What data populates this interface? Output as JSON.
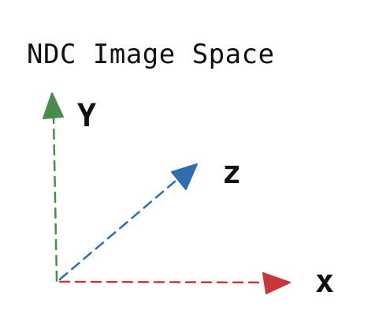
{
  "title": "NDC Image Space",
  "axes": [
    {
      "key": "y",
      "label": "Y",
      "color": "#4a8c4e"
    },
    {
      "key": "z",
      "label": "z",
      "color": "#2f6db0"
    },
    {
      "key": "x",
      "label": "x",
      "color": "#c8383a"
    }
  ]
}
